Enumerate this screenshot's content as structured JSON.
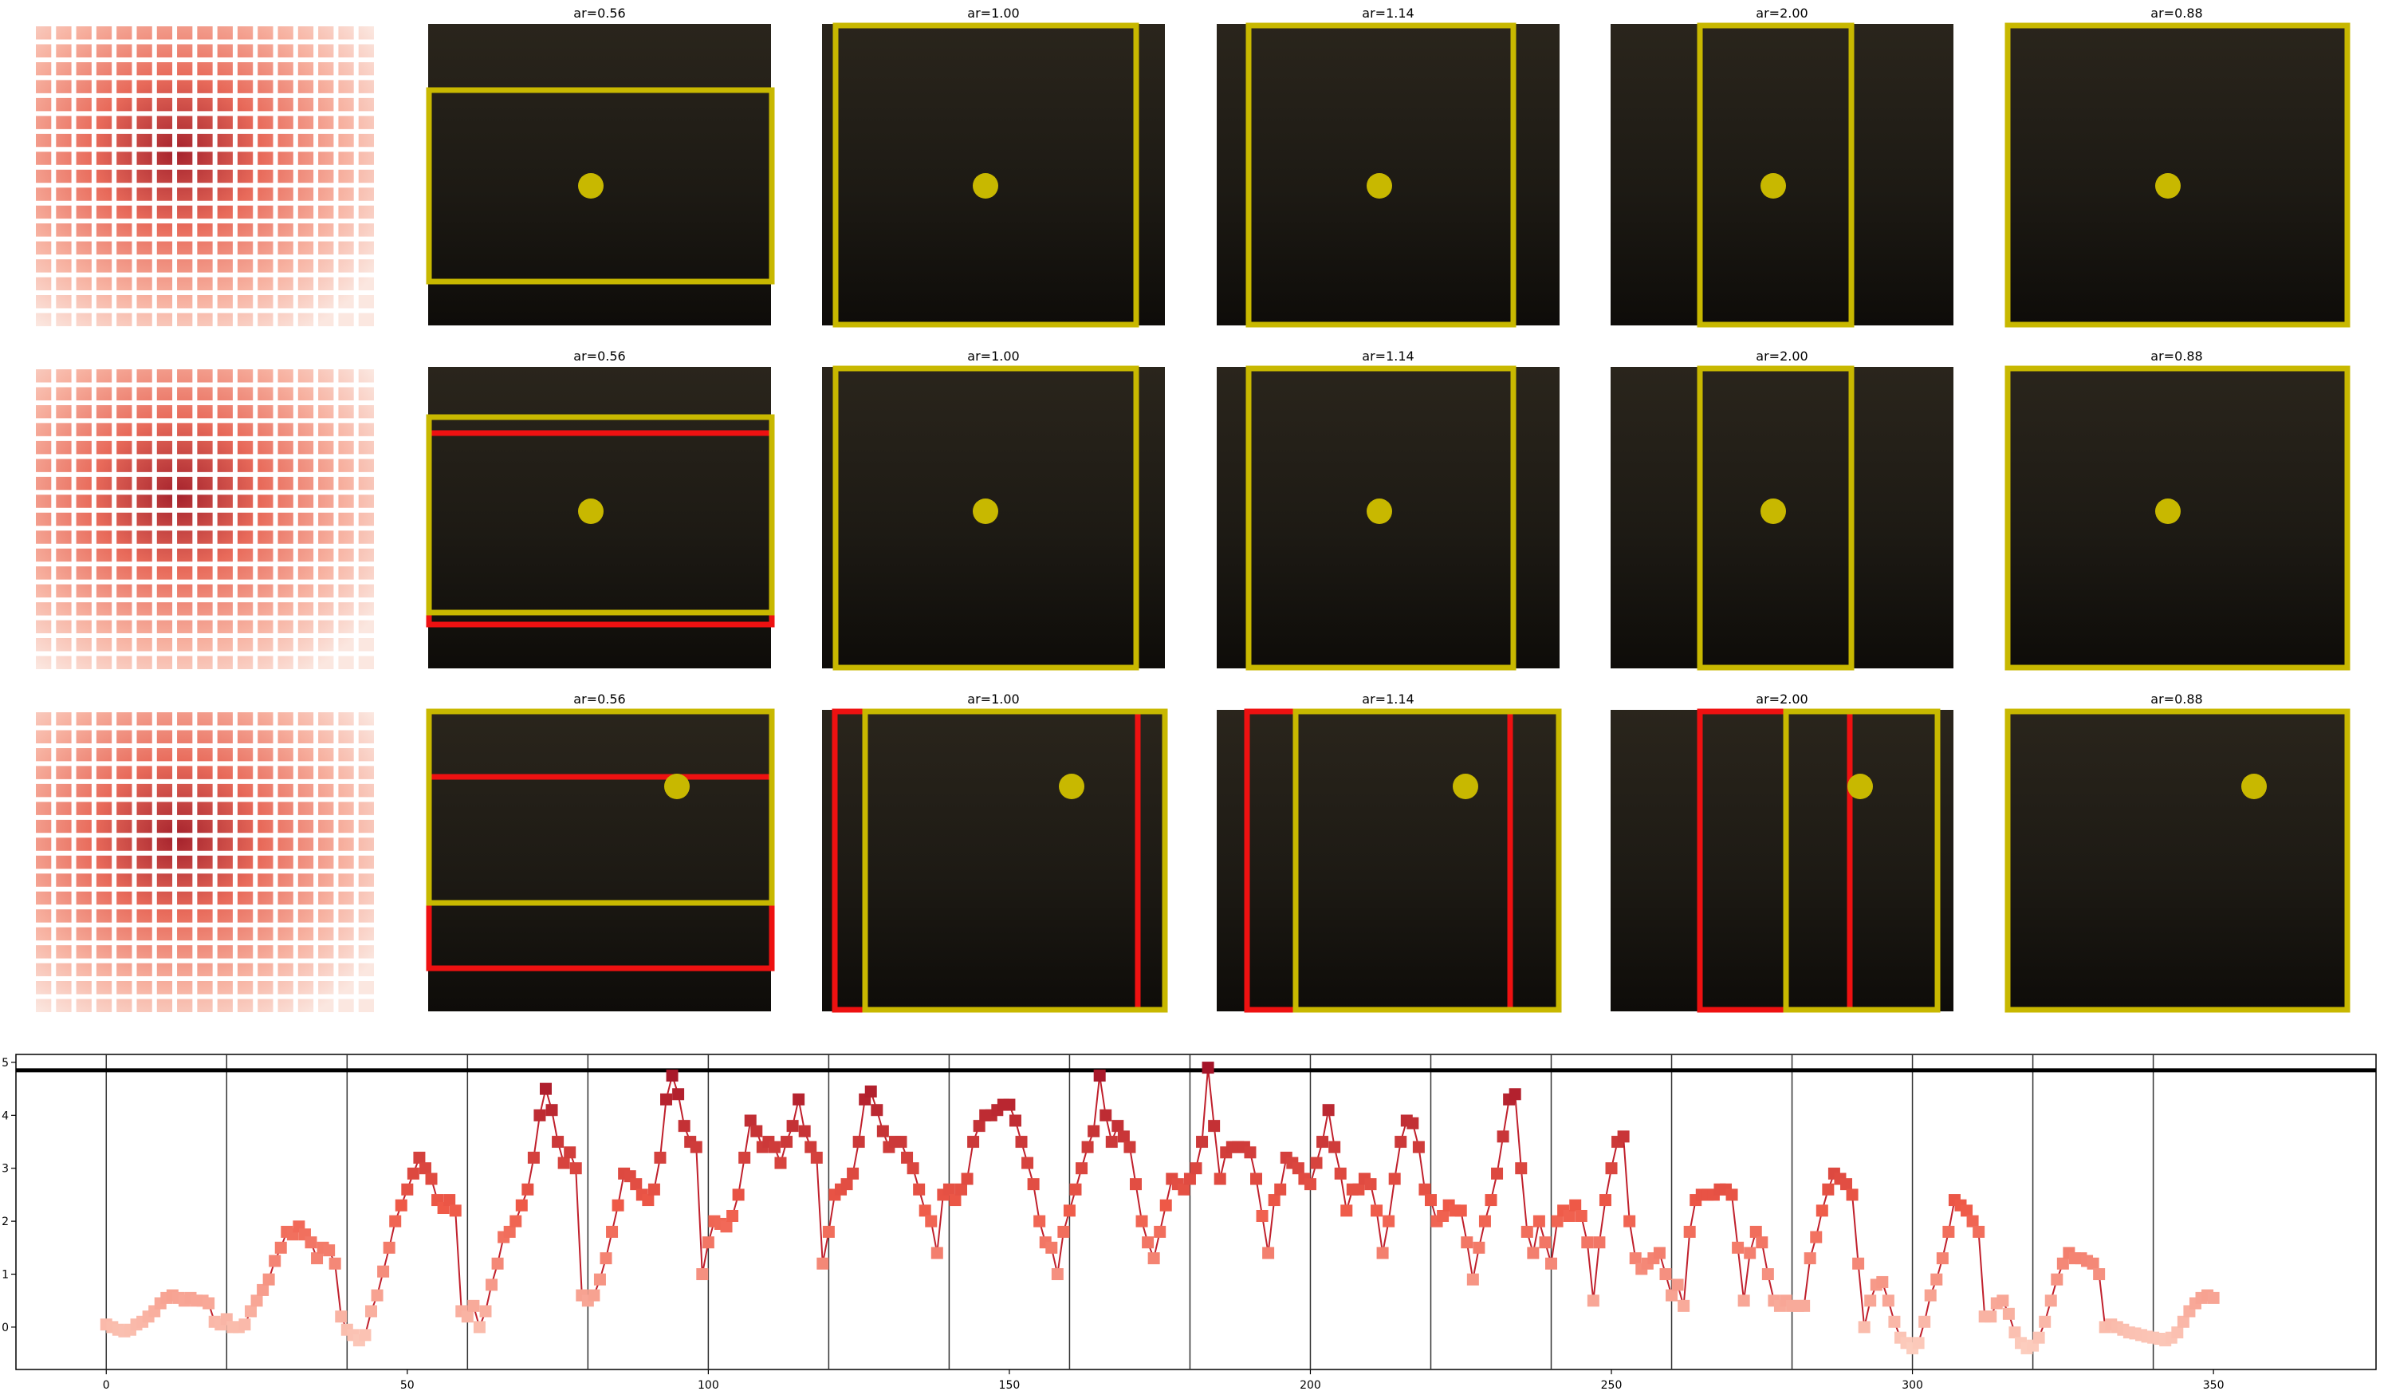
{
  "panel_titles": [
    "ar=0.56",
    "ar=1.00",
    "ar=1.14",
    "ar=2.00",
    "ar=0.88"
  ],
  "colors": {
    "box_yellow": "#c8b800",
    "box_red": "#ee1111",
    "line": "#c0202c",
    "threshold": "#000000",
    "divider": "#333333"
  },
  "chart_data": {
    "type": "line",
    "title": "",
    "xlabel": "",
    "ylabel": "",
    "xlim": [
      -15,
      377
    ],
    "ylim": [
      -0.8,
      5.15
    ],
    "xticks": [
      0,
      50,
      100,
      150,
      200,
      250,
      300,
      350
    ],
    "yticks": [
      0,
      1,
      2,
      3,
      4,
      5
    ],
    "threshold": 4.85,
    "dividers": [
      0,
      20,
      40,
      60,
      80,
      100,
      120,
      140,
      160,
      180,
      200,
      220,
      240,
      260,
      280,
      300,
      320,
      340
    ],
    "marker": "square",
    "grid": false,
    "values": [
      0.05,
      0.0,
      -0.05,
      -0.08,
      -0.05,
      0.05,
      0.1,
      0.2,
      0.3,
      0.45,
      0.55,
      0.6,
      0.55,
      0.5,
      0.55,
      0.5,
      0.5,
      0.45,
      0.1,
      0.05,
      0.15,
      0.0,
      0.0,
      0.05,
      0.3,
      0.5,
      0.7,
      0.9,
      1.25,
      1.5,
      1.8,
      1.75,
      1.9,
      1.75,
      1.6,
      1.3,
      1.5,
      1.45,
      1.2,
      0.2,
      -0.05,
      -0.15,
      -0.25,
      -0.15,
      0.3,
      0.6,
      1.05,
      1.5,
      2.0,
      2.3,
      2.6,
      2.9,
      3.2,
      3.0,
      2.8,
      2.4,
      2.25,
      2.4,
      2.2,
      0.3,
      0.2,
      0.4,
      0.0,
      0.3,
      0.8,
      1.2,
      1.7,
      1.8,
      2.0,
      2.3,
      2.6,
      3.2,
      4.0,
      4.5,
      4.1,
      3.5,
      3.1,
      3.3,
      3.0,
      0.6,
      0.5,
      0.6,
      0.9,
      1.3,
      1.8,
      2.3,
      2.9,
      2.85,
      2.7,
      2.5,
      2.4,
      2.6,
      3.2,
      4.3,
      4.75,
      4.4,
      3.8,
      3.5,
      3.4,
      1.0,
      1.6,
      2.0,
      1.95,
      1.9,
      2.1,
      2.5,
      3.2,
      3.9,
      3.7,
      3.4,
      3.5,
      3.4,
      3.1,
      3.5,
      3.8,
      4.3,
      3.7,
      3.4,
      3.2,
      1.2,
      1.8,
      2.5,
      2.6,
      2.7,
      2.9,
      3.5,
      4.3,
      4.45,
      4.1,
      3.7,
      3.4,
      3.5,
      3.5,
      3.2,
      3.0,
      2.6,
      2.2,
      2.0,
      1.4,
      2.5,
      2.6,
      2.4,
      2.6,
      2.8,
      3.5,
      3.8,
      4.0,
      4.0,
      4.1,
      4.2,
      4.2,
      3.9,
      3.5,
      3.1,
      2.7,
      2.0,
      1.6,
      1.5,
      1.0,
      1.8,
      2.2,
      2.6,
      3.0,
      3.4,
      3.7,
      4.75,
      4.0,
      3.5,
      3.8,
      3.6,
      3.4,
      2.7,
      2.0,
      1.6,
      1.3,
      1.8,
      2.3,
      2.8,
      2.7,
      2.6,
      2.8,
      3.0,
      3.5,
      4.9,
      3.8,
      2.8,
      3.3,
      3.4,
      3.4,
      3.4,
      3.3,
      2.8,
      2.1,
      1.4,
      2.4,
      2.6,
      3.2,
      3.1,
      3.0,
      2.8,
      2.7,
      3.1,
      3.5,
      4.1,
      3.4,
      2.9,
      2.2,
      2.6,
      2.6,
      2.8,
      2.7,
      2.2,
      1.4,
      2.0,
      2.8,
      3.5,
      3.9,
      3.85,
      3.4,
      2.6,
      2.4,
      2.0,
      2.1,
      2.3,
      2.2,
      2.2,
      1.6,
      0.9,
      1.5,
      2.0,
      2.4,
      2.9,
      3.6,
      4.3,
      4.4,
      3.0,
      1.8,
      1.4,
      2.0,
      1.6,
      1.2,
      2.0,
      2.2,
      2.1,
      2.3,
      2.1,
      1.6,
      0.5,
      1.6,
      2.4,
      3.0,
      3.5,
      3.6,
      2.0,
      1.3,
      1.1,
      1.2,
      1.3,
      1.4,
      1.0,
      0.6,
      0.8,
      0.4,
      1.8,
      2.4,
      2.5,
      2.5,
      2.5,
      2.6,
      2.6,
      2.5,
      1.5,
      0.5,
      1.4,
      1.8,
      1.6,
      1.0,
      0.5,
      0.4,
      0.5,
      0.4,
      0.4,
      0.4,
      1.3,
      1.7,
      2.2,
      2.6,
      2.9,
      2.8,
      2.7,
      2.5,
      1.2,
      0.0,
      0.5,
      0.8,
      0.85,
      0.5,
      0.1,
      -0.2,
      -0.3,
      -0.4,
      -0.3,
      0.1,
      0.6,
      0.9,
      1.3,
      1.8,
      2.4,
      2.3,
      2.2,
      2.0,
      1.8,
      0.2,
      0.2,
      0.45,
      0.5,
      0.25,
      -0.1,
      -0.3,
      -0.4,
      -0.35,
      -0.2,
      0.1,
      0.5,
      0.9,
      1.2,
      1.4,
      1.3,
      1.3,
      1.25,
      1.2,
      1.0,
      0.0,
      0.05,
      0.0,
      -0.05,
      -0.1,
      -0.12,
      -0.15,
      -0.18,
      -0.2,
      -0.22,
      -0.25,
      -0.2,
      -0.1,
      0.1,
      0.3,
      0.45,
      0.55,
      0.6,
      0.55
    ]
  }
}
